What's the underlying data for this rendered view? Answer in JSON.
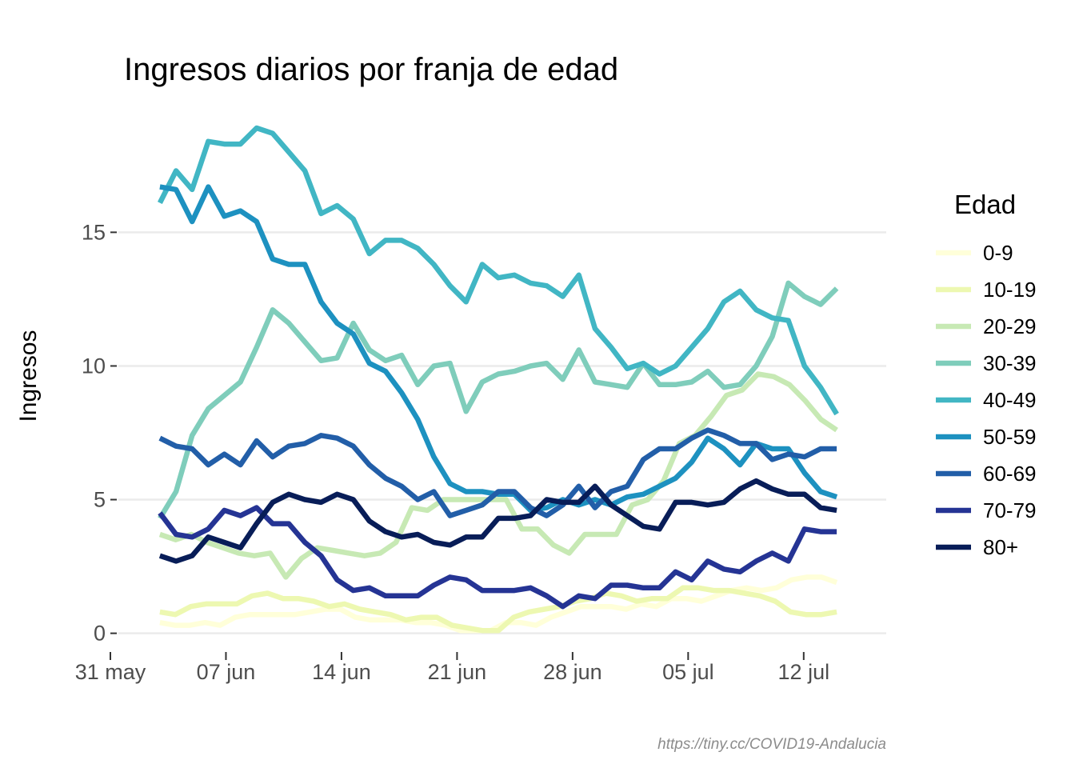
{
  "chart_data": {
    "type": "line",
    "title": "Ingresos diarios por franja de edad",
    "xlabel": "",
    "ylabel": "Ingresos",
    "caption": "https://tiny.cc/COVID19-Andalucia",
    "x_start": "2020-06-03",
    "x_end": "2020-07-14",
    "xlim": [
      "2020-05-31",
      "2020-07-17"
    ],
    "ylim": [
      -0.7,
      19.5
    ],
    "x_ticks": [
      {
        "date": "2020-05-31",
        "label": "31 may"
      },
      {
        "date": "2020-06-07",
        "label": "07 jun"
      },
      {
        "date": "2020-06-14",
        "label": "14 jun"
      },
      {
        "date": "2020-06-21",
        "label": "21 jun"
      },
      {
        "date": "2020-06-28",
        "label": "28 jun"
      },
      {
        "date": "2020-07-05",
        "label": "05 jul"
      },
      {
        "date": "2020-07-12",
        "label": "12 jul"
      }
    ],
    "y_ticks": [
      0,
      5,
      10,
      15
    ],
    "grid": true,
    "legend": {
      "title": "Edad",
      "position": "right"
    },
    "series": [
      {
        "name": "0-9",
        "color": "#ffffd9",
        "values": [
          0.4,
          0.3,
          0.3,
          0.4,
          0.3,
          0.6,
          0.7,
          0.7,
          0.7,
          0.7,
          0.8,
          0.9,
          0.9,
          0.6,
          0.5,
          0.5,
          0.5,
          0.4,
          0.4,
          0.3,
          0.1,
          0.1,
          0.1,
          0.4,
          0.4,
          0.3,
          0.6,
          0.8,
          1.0,
          1.0,
          1.0,
          0.9,
          1.1,
          1.0,
          1.3,
          1.3,
          1.2,
          1.4,
          1.6,
          1.7,
          1.6,
          1.7,
          2.0,
          2.1,
          2.1,
          1.9
        ]
      },
      {
        "name": "10-19",
        "color": "#edf8b1",
        "values": [
          0.8,
          0.7,
          1.0,
          1.1,
          1.1,
          1.1,
          1.4,
          1.5,
          1.3,
          1.3,
          1.2,
          1.0,
          1.1,
          0.9,
          0.8,
          0.7,
          0.5,
          0.6,
          0.6,
          0.3,
          0.2,
          0.1,
          0.1,
          0.6,
          0.8,
          0.9,
          1.0,
          1.2,
          1.3,
          1.5,
          1.4,
          1.2,
          1.3,
          1.3,
          1.7,
          1.7,
          1.6,
          1.6,
          1.5,
          1.4,
          1.2,
          0.8,
          0.7,
          0.7,
          0.8
        ]
      },
      {
        "name": "20-29",
        "color": "#c7e9b4",
        "values": [
          3.7,
          3.5,
          3.7,
          3.4,
          3.2,
          3.0,
          2.9,
          3.0,
          2.1,
          2.8,
          3.2,
          3.1,
          3.0,
          2.9,
          3.0,
          3.4,
          4.7,
          4.6,
          5.0,
          5.0,
          5.0,
          5.0,
          5.0,
          3.9,
          3.9,
          3.3,
          3.0,
          3.7,
          3.7,
          3.7,
          4.8,
          5.0,
          5.7,
          7.1,
          7.4,
          8.1,
          8.9,
          9.1,
          9.7,
          9.6,
          9.3,
          8.7,
          8.0,
          7.6
        ]
      },
      {
        "name": "30-39",
        "color": "#7fcdbb",
        "values": [
          4.3,
          5.3,
          7.4,
          8.4,
          8.9,
          9.4,
          10.7,
          12.1,
          11.6,
          10.9,
          10.2,
          10.3,
          11.6,
          10.6,
          10.2,
          10.4,
          9.3,
          10.0,
          10.1,
          8.3,
          9.4,
          9.7,
          9.8,
          10.0,
          10.1,
          9.5,
          10.6,
          9.4,
          9.3,
          9.2,
          10.1,
          9.3,
          9.3,
          9.4,
          9.8,
          9.2,
          9.3,
          10.0,
          11.1,
          13.1,
          12.6,
          12.3,
          12.9
        ]
      },
      {
        "name": "40-49",
        "color": "#41b6c4",
        "values": [
          16.1,
          17.3,
          16.6,
          18.4,
          18.3,
          18.3,
          18.9,
          18.7,
          18.0,
          17.3,
          15.7,
          16.0,
          15.5,
          14.2,
          14.7,
          14.7,
          14.4,
          13.8,
          13.0,
          12.4,
          13.8,
          13.3,
          13.4,
          13.1,
          13.0,
          12.6,
          13.4,
          11.4,
          10.7,
          9.9,
          10.1,
          9.7,
          10.0,
          10.7,
          11.4,
          12.4,
          12.8,
          12.1,
          11.8,
          11.7,
          10.0,
          9.2,
          8.2
        ]
      },
      {
        "name": "50-59",
        "color": "#1d91c0",
        "values": [
          16.7,
          16.6,
          15.4,
          16.7,
          15.6,
          15.8,
          15.4,
          14.0,
          13.8,
          13.8,
          12.4,
          11.6,
          11.2,
          10.1,
          9.8,
          9.0,
          8.0,
          6.6,
          5.6,
          5.3,
          5.3,
          5.2,
          5.2,
          4.6,
          4.7,
          5.0,
          4.8,
          5.0,
          4.8,
          5.1,
          5.2,
          5.5,
          5.8,
          6.4,
          7.3,
          6.9,
          6.3,
          7.1,
          6.9,
          6.9,
          6.0,
          5.3,
          5.1
        ]
      },
      {
        "name": "60-69",
        "color": "#225ea8",
        "values": [
          7.3,
          7.0,
          6.9,
          6.3,
          6.7,
          6.3,
          7.2,
          6.6,
          7.0,
          7.1,
          7.4,
          7.3,
          7.0,
          6.3,
          5.8,
          5.5,
          5.0,
          5.3,
          4.4,
          4.6,
          4.8,
          5.3,
          5.3,
          4.7,
          4.4,
          4.8,
          5.5,
          4.7,
          5.3,
          5.5,
          6.5,
          6.9,
          6.9,
          7.3,
          7.6,
          7.4,
          7.1,
          7.1,
          6.5,
          6.7,
          6.6,
          6.9,
          6.9
        ]
      },
      {
        "name": "70-79",
        "color": "#253494",
        "values": [
          4.5,
          3.7,
          3.6,
          3.9,
          4.6,
          4.4,
          4.7,
          4.1,
          4.1,
          3.4,
          2.9,
          2.0,
          1.6,
          1.7,
          1.4,
          1.4,
          1.4,
          1.8,
          2.1,
          2.0,
          1.6,
          1.6,
          1.6,
          1.7,
          1.4,
          1.0,
          1.4,
          1.3,
          1.8,
          1.8,
          1.7,
          1.7,
          2.3,
          2.0,
          2.7,
          2.4,
          2.3,
          2.7,
          3.0,
          2.7,
          3.9,
          3.8,
          3.8
        ]
      },
      {
        "name": "80+",
        "color": "#081d58",
        "values": [
          2.9,
          2.7,
          2.9,
          3.6,
          3.4,
          3.2,
          4.1,
          4.9,
          5.2,
          5.0,
          4.9,
          5.2,
          5.0,
          4.2,
          3.8,
          3.6,
          3.7,
          3.4,
          3.3,
          3.6,
          3.6,
          4.3,
          4.3,
          4.4,
          5.0,
          4.9,
          4.9,
          5.5,
          4.8,
          4.4,
          4.0,
          3.9,
          4.9,
          4.9,
          4.8,
          4.9,
          5.4,
          5.7,
          5.4,
          5.2,
          5.2,
          4.7,
          4.6
        ]
      }
    ]
  }
}
